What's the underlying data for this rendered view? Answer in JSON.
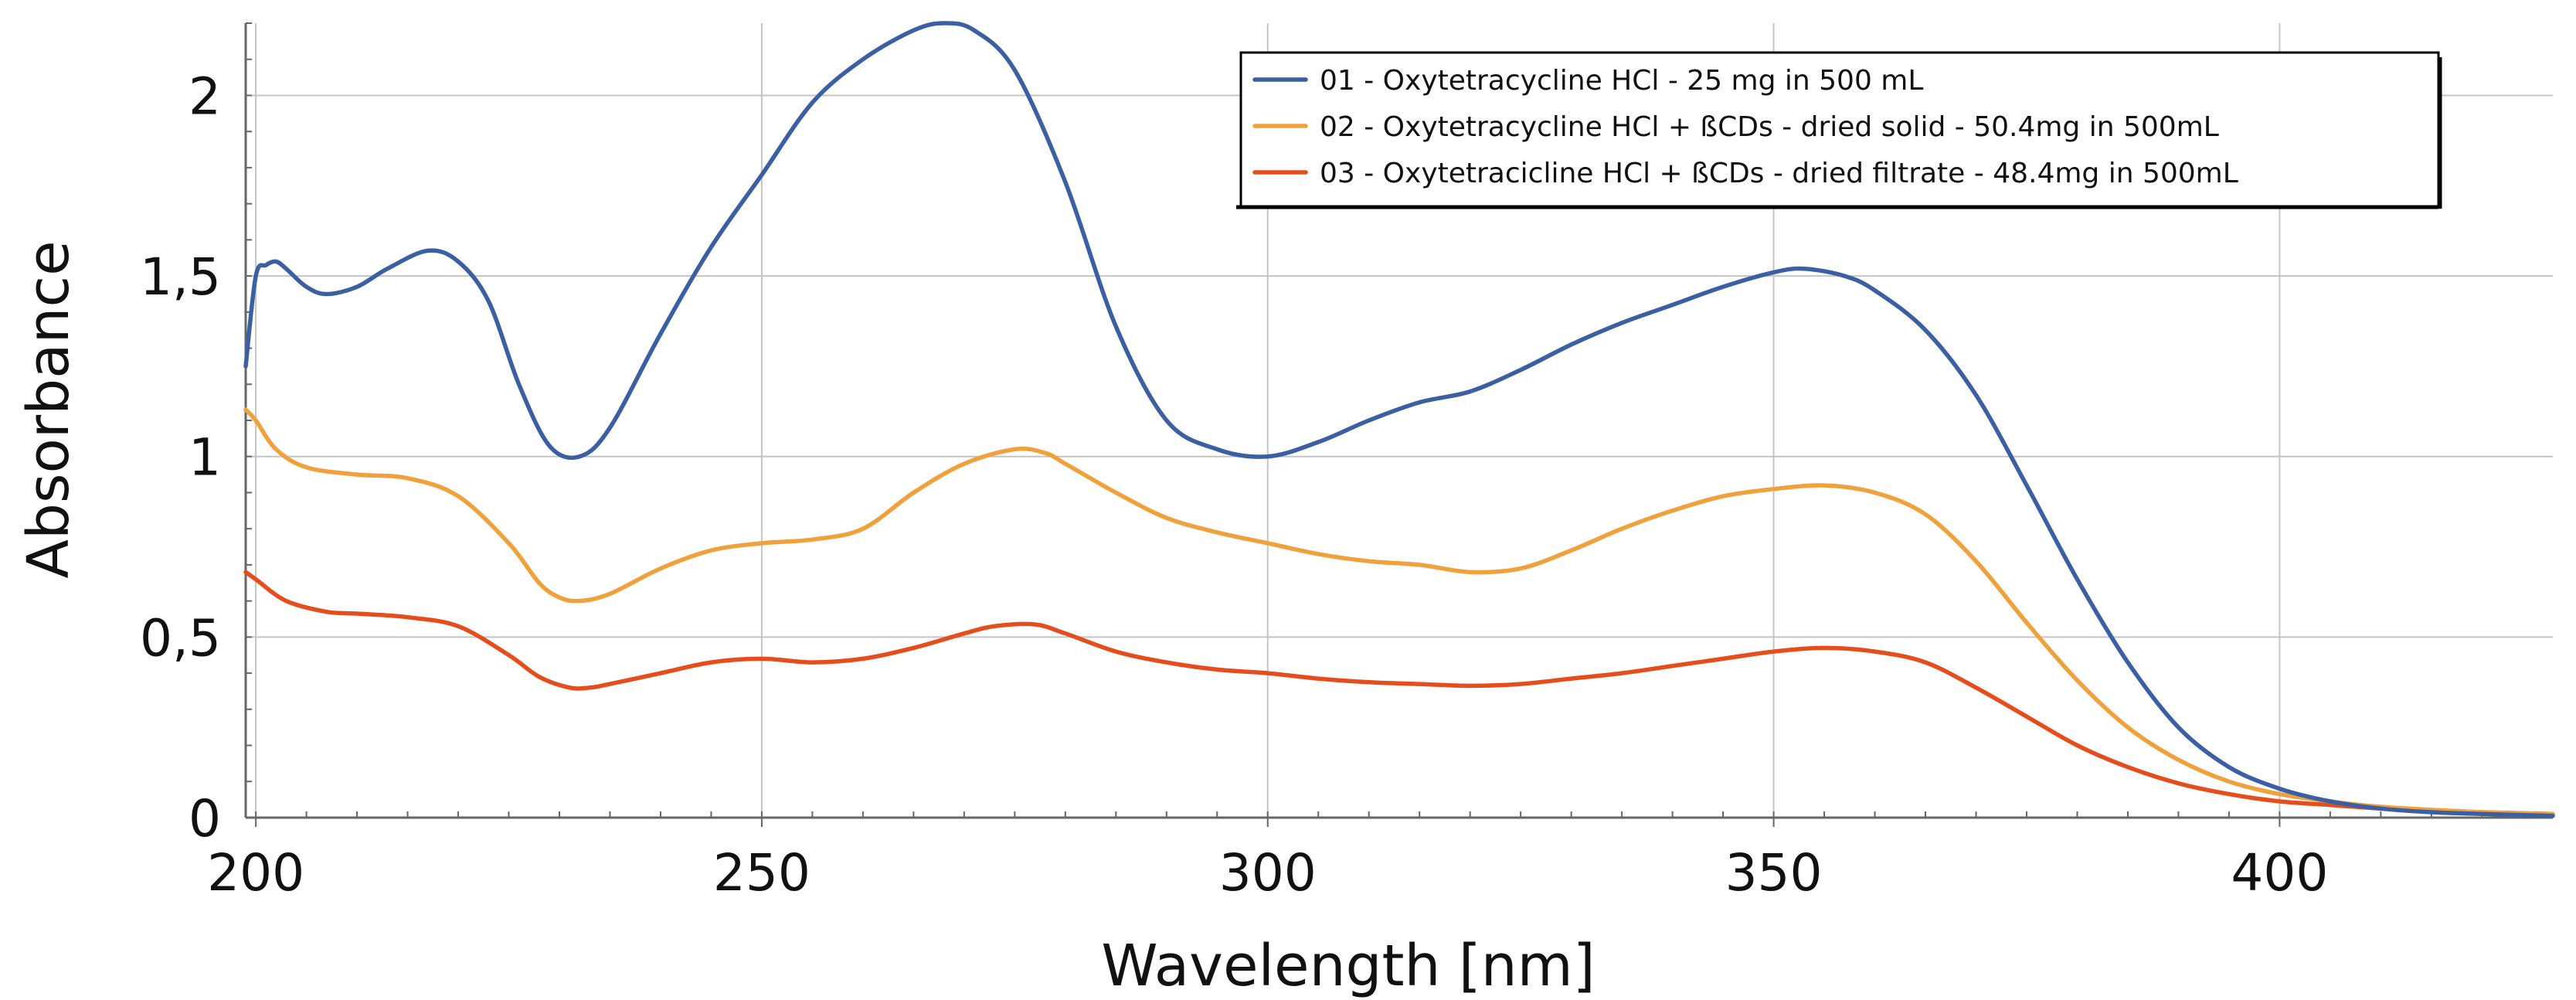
{
  "chart_data": {
    "type": "line",
    "title": "",
    "xlabel": "Wavelength [nm]",
    "ylabel": "Absorbance",
    "xlim": [
      199,
      427
    ],
    "ylim": [
      0,
      2.2
    ],
    "x_ticks": [
      {
        "value": 200,
        "label": "200"
      },
      {
        "value": 250,
        "label": "250"
      },
      {
        "value": 300,
        "label": "300"
      },
      {
        "value": 350,
        "label": "350"
      },
      {
        "value": 400,
        "label": "400"
      }
    ],
    "y_ticks": [
      {
        "value": 0,
        "label": "0"
      },
      {
        "value": 0.5,
        "label": "0,5"
      },
      {
        "value": 1,
        "label": "1"
      },
      {
        "value": 1.5,
        "label": "1,5"
      },
      {
        "value": 2,
        "label": "2"
      }
    ],
    "grid": true,
    "legend_position": "top-right",
    "series": [
      {
        "name": "01 - Oxytetracycline HCl - 25 mg in 500 mL",
        "color": "#3b5fa3",
        "x": [
          199,
          200,
          201,
          202,
          203,
          205,
          207,
          210,
          213,
          217,
          220,
          223,
          226,
          229,
          232,
          235,
          240,
          245,
          250,
          255,
          260,
          265,
          268,
          271,
          275,
          280,
          285,
          290,
          295,
          300,
          305,
          310,
          315,
          320,
          325,
          330,
          335,
          340,
          345,
          350,
          353,
          357,
          360,
          365,
          370,
          375,
          380,
          385,
          390,
          395,
          400,
          405,
          410,
          415,
          420,
          427
        ],
        "y": [
          1.25,
          1.5,
          1.53,
          1.54,
          1.52,
          1.47,
          1.45,
          1.47,
          1.52,
          1.57,
          1.54,
          1.43,
          1.2,
          1.03,
          1.0,
          1.08,
          1.34,
          1.58,
          1.78,
          1.98,
          2.1,
          2.18,
          2.2,
          2.18,
          2.07,
          1.76,
          1.36,
          1.1,
          1.02,
          1.0,
          1.04,
          1.1,
          1.15,
          1.18,
          1.24,
          1.31,
          1.37,
          1.42,
          1.47,
          1.51,
          1.52,
          1.5,
          1.46,
          1.35,
          1.17,
          0.92,
          0.66,
          0.43,
          0.25,
          0.14,
          0.08,
          0.045,
          0.025,
          0.015,
          0.01,
          0.005
        ]
      },
      {
        "name": "02 - Oxytetracycline HCl + ßCDs - dried solid - 50.4mg in 500mL",
        "color": "#f0a13c",
        "x": [
          199,
          200,
          202,
          205,
          210,
          215,
          220,
          225,
          228,
          230,
          232,
          235,
          240,
          245,
          250,
          255,
          260,
          265,
          270,
          275,
          278,
          280,
          285,
          290,
          295,
          300,
          305,
          310,
          315,
          320,
          325,
          330,
          335,
          340,
          345,
          350,
          355,
          360,
          365,
          370,
          375,
          380,
          385,
          390,
          395,
          400,
          405,
          410,
          420,
          427
        ],
        "y": [
          1.13,
          1.1,
          1.02,
          0.97,
          0.95,
          0.94,
          0.89,
          0.76,
          0.65,
          0.61,
          0.6,
          0.62,
          0.69,
          0.74,
          0.76,
          0.77,
          0.8,
          0.9,
          0.98,
          1.02,
          1.01,
          0.98,
          0.9,
          0.83,
          0.79,
          0.76,
          0.73,
          0.71,
          0.7,
          0.68,
          0.69,
          0.74,
          0.8,
          0.85,
          0.89,
          0.91,
          0.92,
          0.9,
          0.84,
          0.71,
          0.54,
          0.38,
          0.25,
          0.16,
          0.1,
          0.065,
          0.045,
          0.03,
          0.015,
          0.01
        ]
      },
      {
        "name": "03 - Oxytetracicline HCl + ßCDs - dried filtrate - 48.4mg in 500mL",
        "color": "#e64d1c",
        "x": [
          199,
          200,
          203,
          207,
          210,
          215,
          220,
          225,
          228,
          231,
          233,
          235,
          240,
          245,
          250,
          255,
          260,
          265,
          270,
          273,
          277,
          280,
          285,
          290,
          295,
          300,
          305,
          310,
          315,
          320,
          325,
          330,
          335,
          340,
          345,
          350,
          355,
          360,
          365,
          370,
          375,
          380,
          385,
          390,
          395,
          400,
          405,
          410,
          415,
          420,
          427
        ],
        "y": [
          0.68,
          0.66,
          0.6,
          0.57,
          0.565,
          0.555,
          0.53,
          0.45,
          0.39,
          0.36,
          0.36,
          0.37,
          0.4,
          0.43,
          0.44,
          0.43,
          0.44,
          0.47,
          0.51,
          0.53,
          0.535,
          0.51,
          0.46,
          0.43,
          0.41,
          0.4,
          0.385,
          0.375,
          0.37,
          0.365,
          0.37,
          0.385,
          0.4,
          0.42,
          0.44,
          0.46,
          0.47,
          0.46,
          0.43,
          0.36,
          0.28,
          0.2,
          0.14,
          0.095,
          0.065,
          0.045,
          0.035,
          0.025,
          0.02,
          0.015,
          0.01
        ]
      }
    ]
  }
}
